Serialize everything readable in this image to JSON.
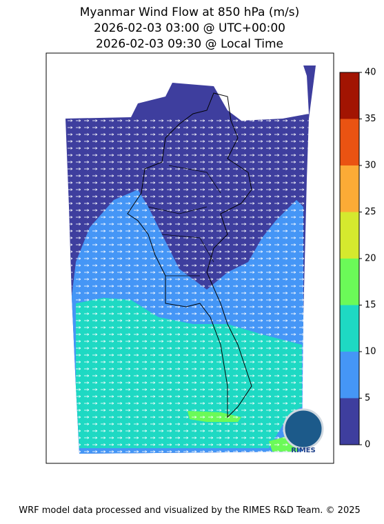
{
  "title": [
    "Myanmar Wind Flow at 850 hPa (m/s)",
    "2026-02-03 03:00 @ UTC+00:00",
    "2026-02-03 09:30 @ Local Time"
  ],
  "colorbar": {
    "lim": [
      0,
      40
    ],
    "ticks": [
      0,
      5,
      10,
      15,
      20,
      25,
      30,
      35,
      40
    ],
    "colors": [
      "#3e3e9e",
      "#4596f6",
      "#1ed9c3",
      "#6bfa58",
      "#d5e92e",
      "#fcab36",
      "#ea5312",
      "#a21402"
    ]
  },
  "logo": "RIMES",
  "footer": "WRF model data processed and visualized by the RIMES R&D Team. © 2025"
}
